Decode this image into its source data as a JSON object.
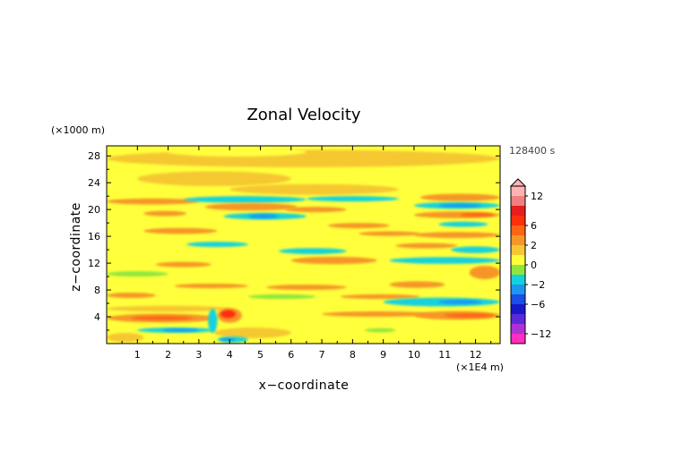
{
  "chart_data": {
    "type": "heatmap",
    "title": "Zonal Velocity",
    "xlabel": "x−coordinate",
    "ylabel": "z−coordinate",
    "x_unit": "(×1E4 m)",
    "y_unit": "(×1000 m)",
    "time_label": "128400 s",
    "xlim": [
      0,
      12.8
    ],
    "ylim": [
      0,
      29.5
    ],
    "xticks": [
      1,
      2,
      3,
      4,
      5,
      6,
      7,
      8,
      9,
      10,
      11,
      12
    ],
    "yticks": [
      4,
      8,
      12,
      16,
      20,
      24,
      28
    ],
    "background_level": 0,
    "colorbar": {
      "levels": [
        {
          "lo": -14,
          "hi": -12,
          "color": "#ff2fbf"
        },
        {
          "lo": -12,
          "hi": -10,
          "color": "#b030d8"
        },
        {
          "lo": -10,
          "hi": -8,
          "color": "#5a2ad8"
        },
        {
          "lo": -8,
          "hi": -6,
          "color": "#1818c8"
        },
        {
          "lo": -6,
          "hi": -4,
          "color": "#1a4ee6"
        },
        {
          "lo": -4,
          "hi": -2,
          "color": "#1e96f0"
        },
        {
          "lo": -2,
          "hi": -1,
          "color": "#14d2dc"
        },
        {
          "lo": -1,
          "hi": 0,
          "color": "#8ee63c"
        },
        {
          "lo": 0,
          "hi": 1,
          "color": "#ffff3c"
        },
        {
          "lo": 1,
          "hi": 2,
          "color": "#f5c832"
        },
        {
          "lo": 2,
          "hi": 4,
          "color": "#f59628"
        },
        {
          "lo": 4,
          "hi": 6,
          "color": "#ff6414"
        },
        {
          "lo": 6,
          "hi": 8,
          "color": "#ff2f0a"
        },
        {
          "lo": 8,
          "hi": 10,
          "color": "#e61e1e"
        },
        {
          "lo": 10,
          "hi": 12,
          "color": "#f08080"
        },
        {
          "lo": 12,
          "hi": 14,
          "color": "#ffb4b4"
        }
      ],
      "tick_labels": [
        {
          "value": 12,
          "text": "12"
        },
        {
          "value": 6,
          "text": "6"
        },
        {
          "value": 2,
          "text": "2"
        },
        {
          "value": 0,
          "text": "0"
        },
        {
          "value": -2,
          "text": "−2"
        },
        {
          "value": -6,
          "text": "−6"
        },
        {
          "value": -12,
          "text": "−12"
        }
      ],
      "extend_top": true
    },
    "bands": [
      {
        "x0": 0.0,
        "x1": 12.8,
        "y": 27.6,
        "h": 2.6,
        "level": 1
      },
      {
        "x0": 2.0,
        "x1": 6.5,
        "y": 28.6,
        "h": 1.4,
        "level": 0
      },
      {
        "x0": 1.0,
        "x1": 6.0,
        "y": 24.6,
        "h": 2.2,
        "level": 1
      },
      {
        "x0": 4.0,
        "x1": 9.5,
        "y": 23.0,
        "h": 1.6,
        "level": 1
      },
      {
        "x0": 0.0,
        "x1": 3.0,
        "y": 21.2,
        "h": 0.9,
        "level": 2
      },
      {
        "x0": 2.5,
        "x1": 6.5,
        "y": 21.5,
        "h": 1.0,
        "level": -2
      },
      {
        "x0": 6.5,
        "x1": 9.5,
        "y": 21.6,
        "h": 0.8,
        "level": -2
      },
      {
        "x0": 10.2,
        "x1": 12.8,
        "y": 21.8,
        "h": 1.1,
        "level": 2
      },
      {
        "x0": 3.2,
        "x1": 6.2,
        "y": 20.4,
        "h": 1.1,
        "level": 2
      },
      {
        "x0": 3.8,
        "x1": 6.5,
        "y": 19.0,
        "h": 1.0,
        "level": -2
      },
      {
        "x0": 4.6,
        "x1": 5.6,
        "y": 19.0,
        "h": 0.6,
        "level": -3
      },
      {
        "x0": 5.8,
        "x1": 7.8,
        "y": 20.0,
        "h": 0.8,
        "level": 2
      },
      {
        "x0": 10.0,
        "x1": 12.8,
        "y": 20.6,
        "h": 1.0,
        "level": -2
      },
      {
        "x0": 10.8,
        "x1": 12.2,
        "y": 20.6,
        "h": 0.5,
        "level": -3
      },
      {
        "x0": 10.0,
        "x1": 12.8,
        "y": 19.2,
        "h": 1.0,
        "level": 2
      },
      {
        "x0": 11.5,
        "x1": 12.6,
        "y": 19.2,
        "h": 0.5,
        "level": 4
      },
      {
        "x0": 1.2,
        "x1": 2.6,
        "y": 19.4,
        "h": 0.8,
        "level": 2
      },
      {
        "x0": 1.2,
        "x1": 3.6,
        "y": 16.8,
        "h": 0.9,
        "level": 2
      },
      {
        "x0": 7.2,
        "x1": 9.2,
        "y": 17.6,
        "h": 0.8,
        "level": 2
      },
      {
        "x0": 10.8,
        "x1": 12.4,
        "y": 17.8,
        "h": 0.8,
        "level": -2
      },
      {
        "x0": 8.2,
        "x1": 10.2,
        "y": 16.4,
        "h": 0.7,
        "level": 2
      },
      {
        "x0": 10.0,
        "x1": 12.8,
        "y": 16.2,
        "h": 0.9,
        "level": 2
      },
      {
        "x0": 2.6,
        "x1": 4.6,
        "y": 14.8,
        "h": 0.8,
        "level": -2
      },
      {
        "x0": 5.6,
        "x1": 7.8,
        "y": 13.8,
        "h": 0.9,
        "level": -2
      },
      {
        "x0": 9.4,
        "x1": 11.4,
        "y": 14.6,
        "h": 0.8,
        "level": 2
      },
      {
        "x0": 11.2,
        "x1": 12.8,
        "y": 14.0,
        "h": 1.0,
        "level": -2
      },
      {
        "x0": 6.0,
        "x1": 8.8,
        "y": 12.4,
        "h": 1.1,
        "level": 2
      },
      {
        "x0": 1.6,
        "x1": 3.4,
        "y": 11.8,
        "h": 0.8,
        "level": 2
      },
      {
        "x0": 9.2,
        "x1": 12.8,
        "y": 12.4,
        "h": 1.0,
        "level": -2
      },
      {
        "x0": 0.0,
        "x1": 2.0,
        "y": 10.4,
        "h": 0.8,
        "level": -1
      },
      {
        "x0": 11.8,
        "x1": 12.8,
        "y": 10.6,
        "h": 2.0,
        "level": 2
      },
      {
        "x0": 9.2,
        "x1": 11.0,
        "y": 8.8,
        "h": 1.0,
        "level": 2
      },
      {
        "x0": 2.2,
        "x1": 4.6,
        "y": 8.6,
        "h": 0.7,
        "level": 2
      },
      {
        "x0": 5.2,
        "x1": 7.8,
        "y": 8.4,
        "h": 0.8,
        "level": 2
      },
      {
        "x0": 0.0,
        "x1": 1.6,
        "y": 7.2,
        "h": 0.8,
        "level": 2
      },
      {
        "x0": 4.6,
        "x1": 6.8,
        "y": 7.0,
        "h": 0.7,
        "level": -1
      },
      {
        "x0": 7.6,
        "x1": 10.2,
        "y": 7.0,
        "h": 0.7,
        "level": 2
      },
      {
        "x0": 9.0,
        "x1": 12.8,
        "y": 6.2,
        "h": 1.3,
        "level": -2
      },
      {
        "x0": 10.8,
        "x1": 12.2,
        "y": 6.2,
        "h": 0.6,
        "level": -3
      },
      {
        "x0": 0.0,
        "x1": 4.0,
        "y": 5.2,
        "h": 0.9,
        "level": 1
      },
      {
        "x0": 0.0,
        "x1": 3.6,
        "y": 3.8,
        "h": 1.3,
        "level": 2
      },
      {
        "x0": 0.8,
        "x1": 2.8,
        "y": 3.8,
        "h": 0.6,
        "level": 4
      },
      {
        "x0": 7.0,
        "x1": 10.6,
        "y": 4.4,
        "h": 0.8,
        "level": 2
      },
      {
        "x0": 10.0,
        "x1": 12.8,
        "y": 4.2,
        "h": 1.3,
        "level": 2
      },
      {
        "x0": 11.0,
        "x1": 12.6,
        "y": 4.2,
        "h": 0.6,
        "level": 4
      },
      {
        "x0": 1.0,
        "x1": 3.5,
        "y": 2.0,
        "h": 0.8,
        "level": -2
      },
      {
        "x0": 1.8,
        "x1": 3.0,
        "y": 2.0,
        "h": 0.4,
        "level": -3
      },
      {
        "x0": 3.5,
        "x1": 6.0,
        "y": 1.6,
        "h": 1.6,
        "level": 1
      },
      {
        "x0": 3.6,
        "x1": 4.4,
        "y": 4.2,
        "h": 2.2,
        "level": 2
      },
      {
        "x0": 3.7,
        "x1": 4.2,
        "y": 4.4,
        "h": 1.2,
        "level": 6
      },
      {
        "x0": 3.3,
        "x1": 3.6,
        "y": 3.4,
        "h": 3.6,
        "level": -2
      },
      {
        "x0": 3.6,
        "x1": 4.6,
        "y": 0.6,
        "h": 0.9,
        "level": -2
      },
      {
        "x0": 3.7,
        "x1": 4.2,
        "y": 0.6,
        "h": 0.4,
        "level": -4
      },
      {
        "x0": 0.0,
        "x1": 1.2,
        "y": 0.9,
        "h": 1.4,
        "level": 1
      },
      {
        "x0": 8.4,
        "x1": 9.4,
        "y": 2.0,
        "h": 0.6,
        "level": -1
      }
    ]
  }
}
